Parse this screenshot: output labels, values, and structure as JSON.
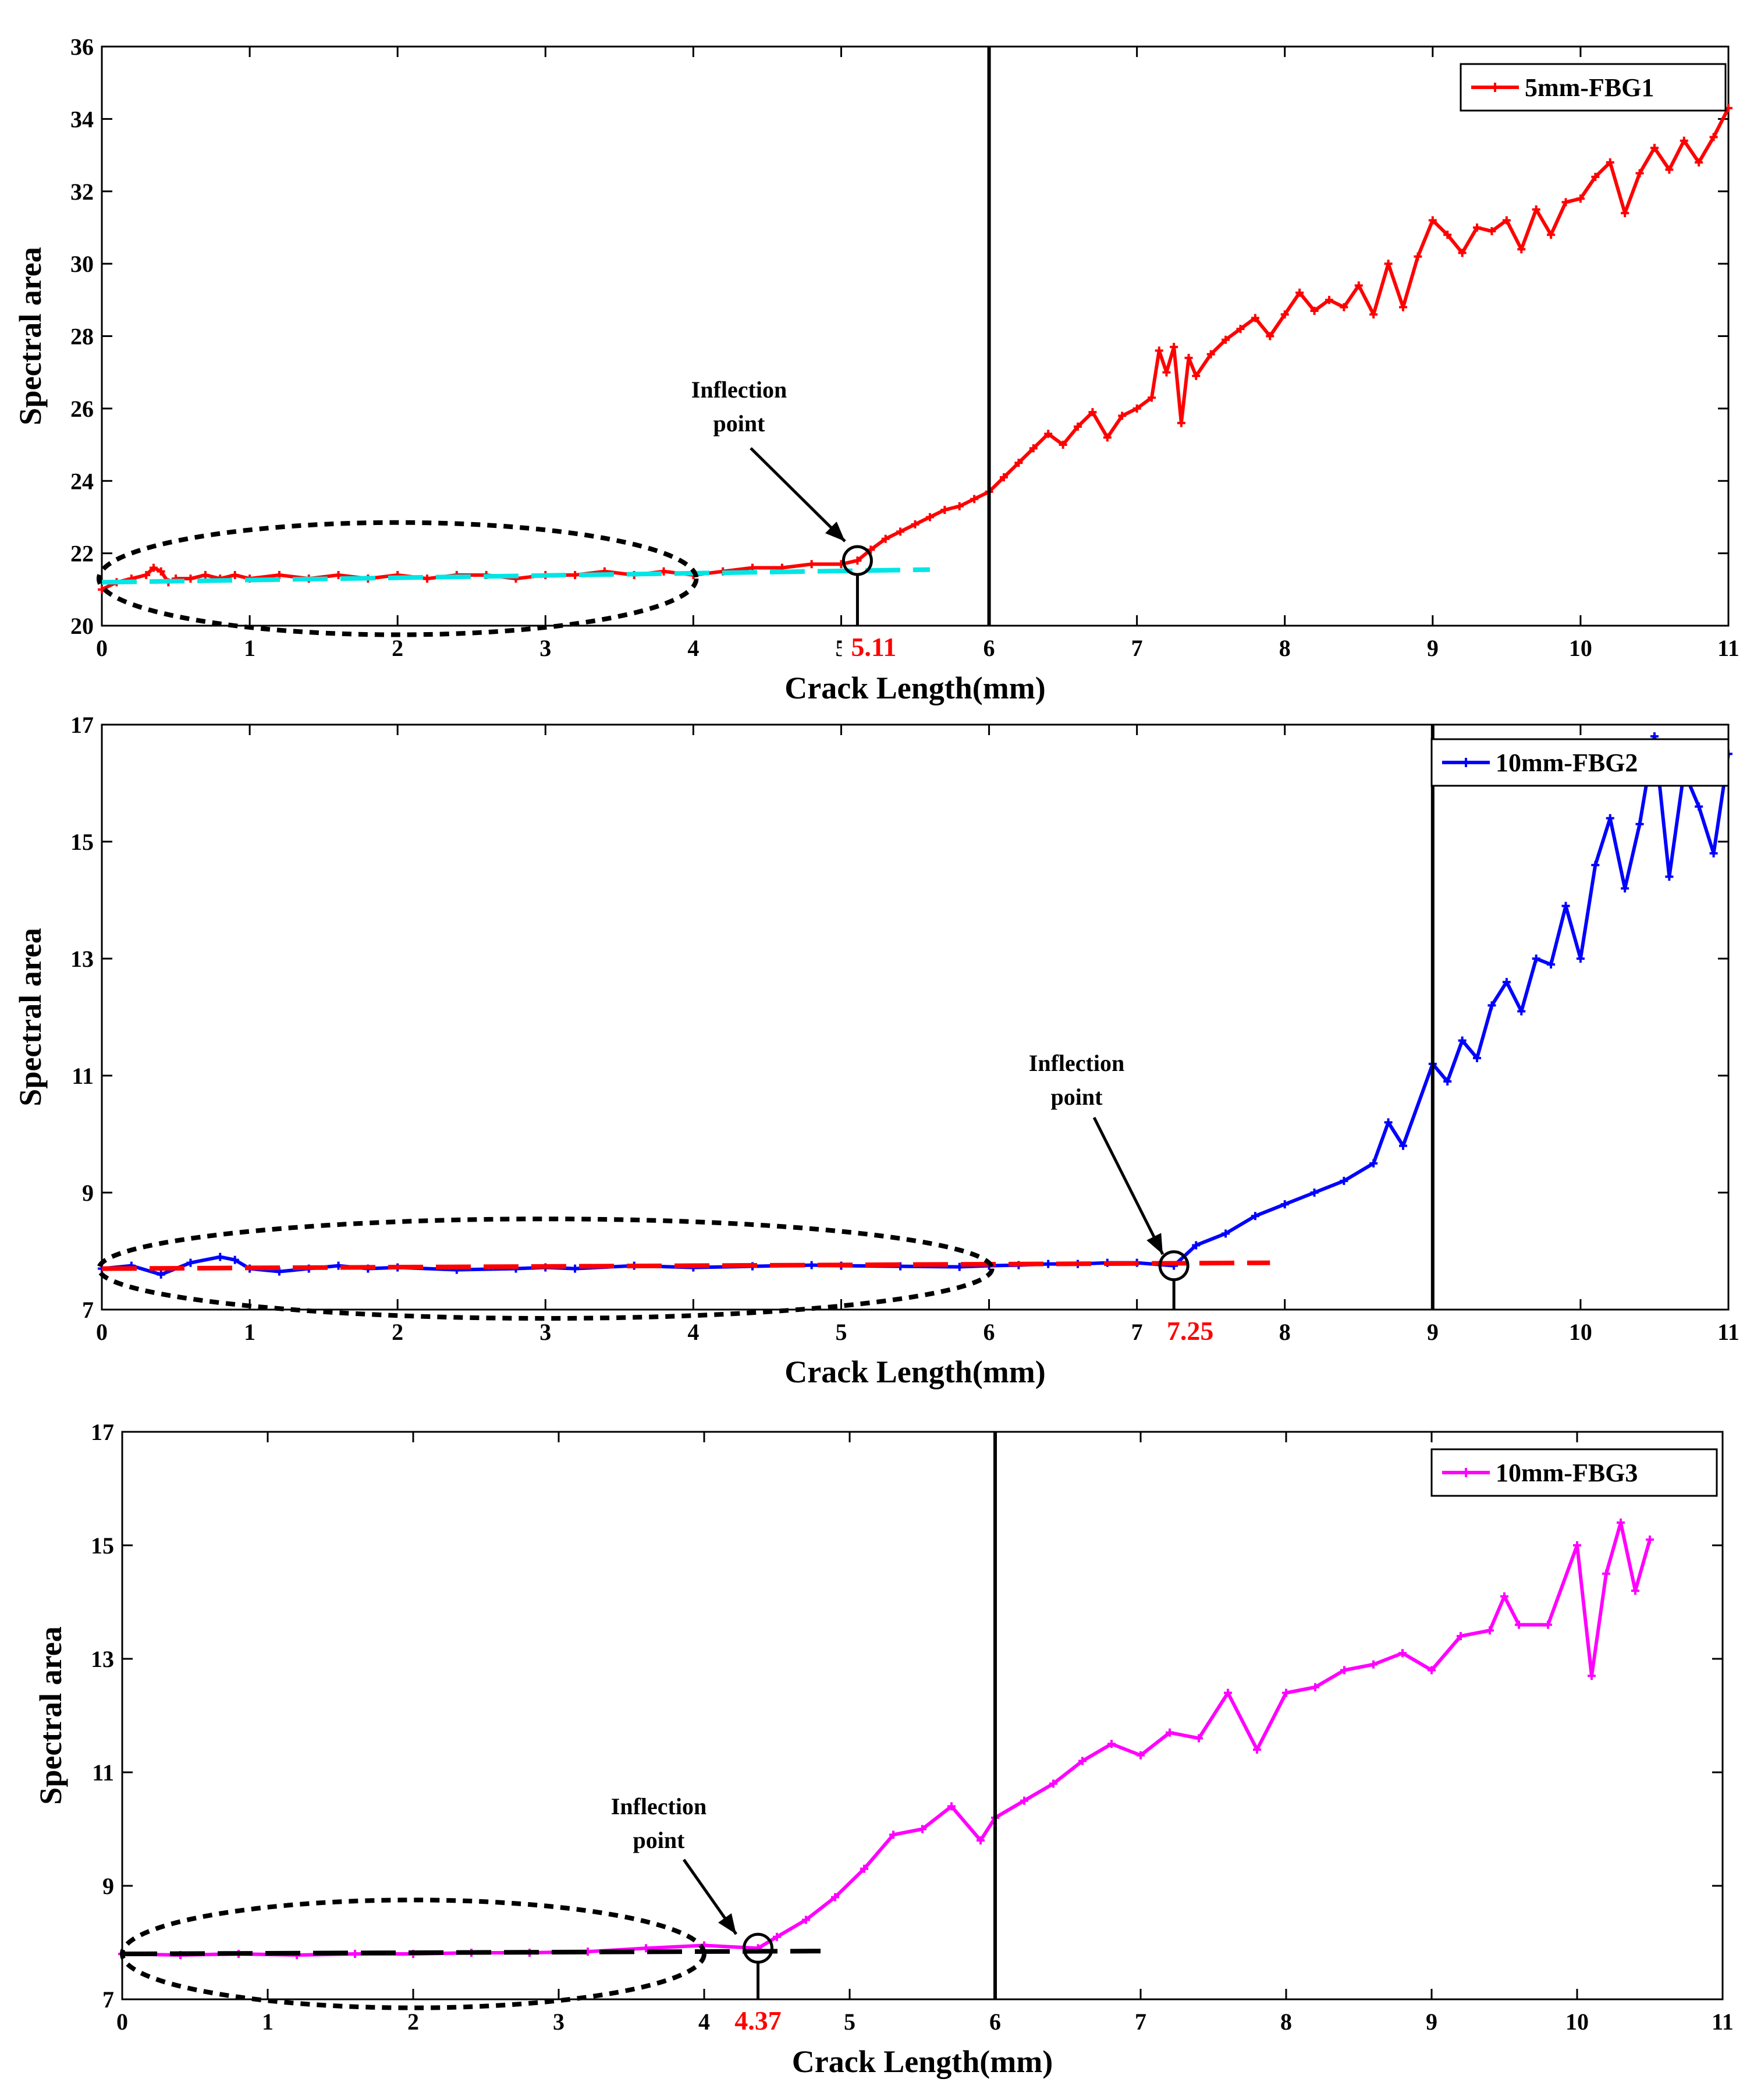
{
  "chart_data": [
    {
      "type": "line",
      "series_name": "5mm-FBG1",
      "color": "#ff0000",
      "fit_color": "#00e5e5",
      "xlabel": "Crack Length(mm)",
      "ylabel": "Spectral area",
      "xlim": [
        0,
        11
      ],
      "ylim": [
        20,
        36
      ],
      "xticks": [
        0,
        1,
        2,
        3,
        4,
        5,
        6,
        7,
        8,
        9,
        10,
        11
      ],
      "yticks": [
        20,
        22,
        24,
        26,
        28,
        30,
        32,
        34,
        36
      ],
      "annotation": "Inflection point",
      "inflection_x": 5.11,
      "inflection_y": 21.8,
      "inflection_label": "5.11",
      "vertical_line_x": 6,
      "fit_line": {
        "x": [
          0,
          5.6
        ],
        "y": [
          21.2,
          21.55
        ]
      },
      "ellipse": {
        "cx": 2.0,
        "cy": 21.3,
        "rx": 2.02,
        "ry": 1.55
      },
      "x": [
        0,
        0.1,
        0.2,
        0.3,
        0.35,
        0.4,
        0.45,
        0.5,
        0.6,
        0.7,
        0.8,
        0.9,
        1.0,
        1.2,
        1.4,
        1.6,
        1.8,
        2.0,
        2.2,
        2.4,
        2.6,
        2.8,
        3.0,
        3.2,
        3.4,
        3.6,
        3.8,
        4.0,
        4.2,
        4.4,
        4.6,
        4.8,
        5.0,
        5.11,
        5.2,
        5.3,
        5.4,
        5.5,
        5.6,
        5.7,
        5.8,
        5.9,
        6.0,
        6.1,
        6.2,
        6.3,
        6.4,
        6.5,
        6.6,
        6.7,
        6.8,
        6.9,
        7.0,
        7.1,
        7.15,
        7.2,
        7.25,
        7.3,
        7.35,
        7.4,
        7.5,
        7.6,
        7.7,
        7.8,
        7.9,
        8.0,
        8.1,
        8.2,
        8.3,
        8.4,
        8.5,
        8.6,
        8.7,
        8.8,
        8.9,
        9.0,
        9.1,
        9.2,
        9.3,
        9.4,
        9.5,
        9.6,
        9.7,
        9.8,
        9.9,
        10.0,
        10.1,
        10.2,
        10.3,
        10.4,
        10.5,
        10.6,
        10.7,
        10.8,
        10.9,
        11.0
      ],
      "y": [
        21.0,
        21.2,
        21.3,
        21.4,
        21.6,
        21.5,
        21.2,
        21.3,
        21.3,
        21.4,
        21.3,
        21.4,
        21.3,
        21.4,
        21.3,
        21.4,
        21.3,
        21.4,
        21.3,
        21.4,
        21.4,
        21.3,
        21.4,
        21.4,
        21.5,
        21.4,
        21.5,
        21.4,
        21.5,
        21.6,
        21.6,
        21.7,
        21.7,
        21.8,
        22.1,
        22.4,
        22.6,
        22.8,
        23.0,
        23.2,
        23.3,
        23.5,
        23.7,
        24.1,
        24.5,
        24.9,
        25.3,
        25.0,
        25.5,
        25.9,
        25.2,
        25.8,
        26.0,
        26.3,
        27.6,
        27.0,
        27.7,
        25.6,
        27.4,
        26.9,
        27.5,
        27.9,
        28.2,
        28.5,
        28.0,
        28.6,
        29.2,
        28.7,
        29.0,
        28.8,
        29.4,
        28.6,
        30.0,
        28.8,
        30.2,
        31.2,
        30.8,
        30.3,
        31.0,
        30.9,
        31.2,
        30.4,
        31.5,
        30.8,
        31.7,
        31.8,
        32.4,
        32.8,
        31.4,
        32.5,
        33.2,
        32.6,
        33.4,
        32.8,
        33.5,
        34.3
      ]
    },
    {
      "type": "line",
      "series_name": "10mm-FBG2",
      "color": "#0000ff",
      "fit_color": "#ff0000",
      "xlabel": "Crack Length(mm)",
      "ylabel": "Spectral area",
      "xlim": [
        0,
        11
      ],
      "ylim": [
        7,
        17
      ],
      "xticks": [
        0,
        1,
        2,
        3,
        4,
        5,
        6,
        7,
        8,
        9,
        10,
        11
      ],
      "yticks": [
        7,
        9,
        11,
        13,
        15,
        17
      ],
      "annotation": "Inflection point",
      "inflection_x": 7.25,
      "inflection_y": 7.75,
      "inflection_label": "7.25",
      "vertical_line_x": 9,
      "fit_line": {
        "x": [
          0,
          7.9
        ],
        "y": [
          7.7,
          7.8
        ]
      },
      "ellipse": {
        "cx": 3.0,
        "cy": 7.7,
        "rx": 3.02,
        "ry": 0.85
      },
      "x": [
        0,
        0.2,
        0.4,
        0.6,
        0.8,
        0.9,
        1.0,
        1.2,
        1.4,
        1.6,
        1.8,
        2.0,
        2.4,
        2.8,
        3.0,
        3.2,
        3.6,
        4.0,
        4.4,
        4.8,
        5.0,
        5.4,
        5.8,
        6.0,
        6.2,
        6.4,
        6.6,
        6.8,
        7.0,
        7.25,
        7.4,
        7.6,
        7.8,
        8.0,
        8.2,
        8.4,
        8.6,
        8.7,
        8.8,
        9.0,
        9.1,
        9.2,
        9.3,
        9.4,
        9.5,
        9.6,
        9.7,
        9.8,
        9.9,
        10.0,
        10.1,
        10.2,
        10.3,
        10.4,
        10.5,
        10.6,
        10.7,
        10.8,
        10.9,
        11.0
      ],
      "y": [
        7.7,
        7.75,
        7.6,
        7.8,
        7.9,
        7.85,
        7.7,
        7.65,
        7.7,
        7.75,
        7.7,
        7.72,
        7.68,
        7.7,
        7.72,
        7.7,
        7.75,
        7.72,
        7.74,
        7.76,
        7.75,
        7.74,
        7.73,
        7.75,
        7.76,
        7.78,
        7.78,
        7.8,
        7.8,
        7.75,
        8.1,
        8.3,
        8.6,
        8.8,
        9.0,
        9.2,
        9.5,
        10.2,
        9.8,
        11.2,
        10.9,
        11.6,
        11.3,
        12.2,
        12.6,
        12.1,
        13.0,
        12.9,
        13.9,
        13.0,
        14.6,
        15.4,
        14.2,
        15.3,
        16.8,
        14.4,
        16.2,
        15.6,
        14.8,
        16.5
      ]
    },
    {
      "type": "line",
      "series_name": "10mm-FBG3",
      "color": "#ff00ff",
      "fit_color": "#000000",
      "xlabel": "Crack Length(mm)",
      "ylabel": "Spectral area",
      "xlim": [
        0,
        11
      ],
      "ylim": [
        7,
        17
      ],
      "xticks": [
        0,
        1,
        2,
        3,
        4,
        5,
        6,
        7,
        8,
        9,
        10,
        11
      ],
      "yticks": [
        7,
        9,
        11,
        13,
        15,
        17
      ],
      "annotation": "Inflection point",
      "inflection_x": 4.37,
      "inflection_y": 7.9,
      "inflection_label": "4.37",
      "vertical_line_x": 6,
      "fit_line": {
        "x": [
          0,
          4.8
        ],
        "y": [
          7.8,
          7.85
        ]
      },
      "ellipse": {
        "cx": 2.0,
        "cy": 7.8,
        "rx": 2.0,
        "ry": 0.95
      },
      "x": [
        0,
        0.4,
        0.8,
        1.2,
        1.6,
        2.0,
        2.4,
        2.8,
        3.2,
        3.6,
        4.0,
        4.37,
        4.5,
        4.7,
        4.9,
        5.1,
        5.3,
        5.5,
        5.7,
        5.9,
        6.0,
        6.2,
        6.4,
        6.6,
        6.8,
        7.0,
        7.2,
        7.4,
        7.6,
        7.8,
        8.0,
        8.2,
        8.4,
        8.6,
        8.8,
        9.0,
        9.2,
        9.4,
        9.5,
        9.6,
        9.8,
        10.0,
        10.1,
        10.2,
        10.3,
        10.4,
        10.5
      ],
      "y": [
        7.8,
        7.78,
        7.8,
        7.78,
        7.8,
        7.8,
        7.82,
        7.82,
        7.84,
        7.9,
        7.95,
        7.9,
        8.1,
        8.4,
        8.8,
        9.3,
        9.9,
        10.0,
        10.4,
        9.8,
        10.2,
        10.5,
        10.8,
        11.2,
        11.5,
        11.3,
        11.7,
        11.6,
        12.4,
        11.4,
        12.4,
        12.5,
        12.8,
        12.9,
        13.1,
        12.8,
        13.4,
        13.5,
        14.1,
        13.6,
        13.6,
        15.0,
        12.7,
        14.5,
        15.4,
        14.2,
        15.1
      ]
    }
  ]
}
